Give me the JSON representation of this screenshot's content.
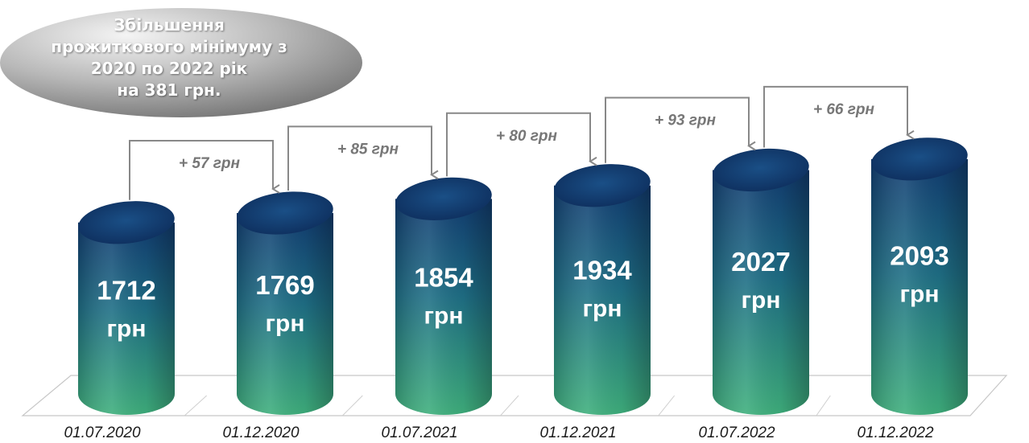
{
  "title": {
    "lines": [
      "Збільшення",
      "прожиткового мінімуму з",
      "2020 по 2022 рік",
      "на 381 грн."
    ]
  },
  "colors": {
    "cylinder_top": "#123d72",
    "cylinder_bottom": "#3aa57a",
    "arrow": "#888888",
    "diff_text": "#777777"
  },
  "chart_data": {
    "type": "bar",
    "categories": [
      "01.07.2020",
      "01.12.2020",
      "01.07.2021",
      "01.12.2021",
      "01.07.2022",
      "01.12.2022"
    ],
    "values": [
      1712,
      1769,
      1854,
      1934,
      2027,
      2093
    ],
    "unit": "грн",
    "increments": [
      "+ 57 грн",
      "+ 85 грн",
      "+ 80 грн",
      "+ 93 грн",
      "+ 66 грн"
    ]
  }
}
